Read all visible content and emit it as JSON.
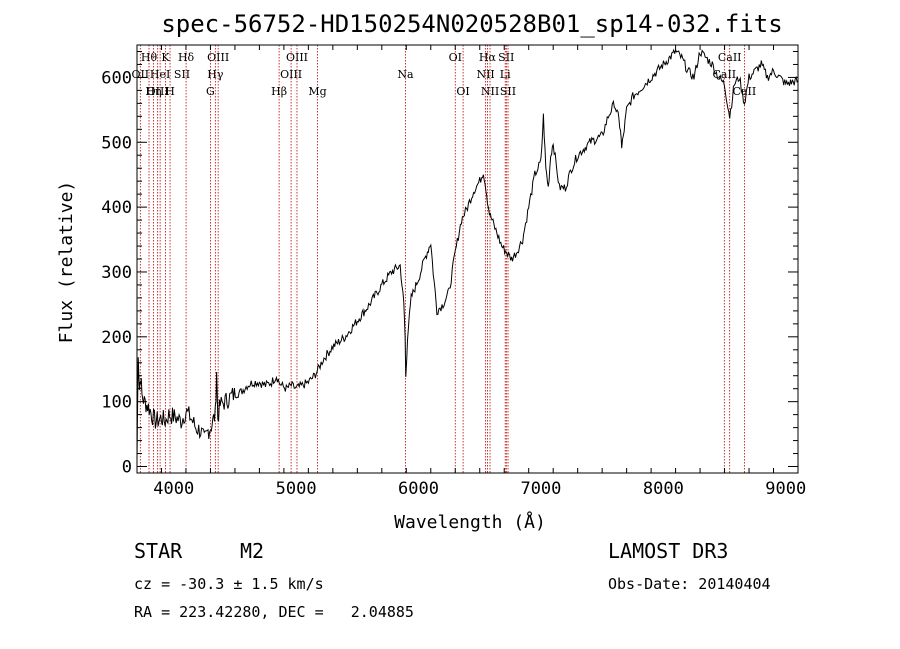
{
  "chart_data": {
    "type": "line",
    "title": "spec-56752-HD150254N020528B01_sp14-032.fits",
    "xlabel": "Wavelength (Å)",
    "ylabel": "Flux (relative)",
    "xlim": [
      3700,
      9100
    ],
    "ylim": [
      -10,
      650
    ],
    "x_ticks": [
      4000,
      5000,
      6000,
      7000,
      8000,
      9000
    ],
    "y_ticks": [
      0,
      100,
      200,
      300,
      400,
      500,
      600
    ],
    "grid": false,
    "series": [
      {
        "name": "spectrum",
        "x": [
          3700,
          3710,
          3720,
          3730,
          3740,
          3760,
          3780,
          3800,
          3820,
          3850,
          3880,
          3900,
          3930,
          3960,
          3990,
          4020,
          4060,
          4100,
          4140,
          4180,
          4220,
          4250,
          4280,
          4300,
          4320,
          4340,
          4350,
          4360,
          4380,
          4420,
          4480,
          4550,
          4600,
          4650,
          4700,
          4750,
          4800,
          4840,
          4861,
          4880,
          4920,
          4960,
          5000,
          5050,
          5100,
          5150,
          5180,
          5220,
          5300,
          5400,
          5500,
          5600,
          5700,
          5780,
          5850,
          5880,
          5890,
          5896,
          5910,
          5940,
          6000,
          6050,
          6080,
          6100,
          6120,
          6150,
          6200,
          6250,
          6300,
          6350,
          6400,
          6450,
          6500,
          6530,
          6550,
          6563,
          6580,
          6600,
          6640,
          6680,
          6720,
          6760,
          6800,
          6850,
          6900,
          6950,
          7000,
          7020,
          7040,
          7060,
          7080,
          7100,
          7150,
          7200,
          7250,
          7300,
          7400,
          7500,
          7550,
          7600,
          7630,
          7650,
          7660,
          7680,
          7700,
          7750,
          7800,
          7900,
          8000,
          8100,
          8150,
          8200,
          8250,
          8300,
          8350,
          8400,
          8450,
          8498,
          8542,
          8580,
          8620,
          8662,
          8700,
          8750,
          8800,
          8850,
          8900,
          8950,
          9000,
          9100
        ],
        "y": [
          10,
          180,
          120,
          140,
          110,
          100,
          95,
          90,
          80,
          70,
          72,
          75,
          70,
          80,
          78,
          75,
          70,
          85,
          75,
          60,
          55,
          40,
          55,
          60,
          70,
          80,
          150,
          75,
          95,
          100,
          110,
          115,
          125,
          130,
          130,
          125,
          130,
          140,
          130,
          125,
          120,
          125,
          120,
          125,
          130,
          140,
          150,
          165,
          185,
          200,
          225,
          250,
          280,
          300,
          310,
          250,
          200,
          140,
          200,
          260,
          290,
          320,
          335,
          345,
          300,
          240,
          250,
          270,
          330,
          380,
          400,
          425,
          440,
          455,
          430,
          410,
          390,
          380,
          360,
          340,
          330,
          320,
          330,
          350,
          400,
          450,
          470,
          540,
          460,
          430,
          480,
          500,
          430,
          430,
          460,
          480,
          500,
          510,
          540,
          560,
          540,
          520,
          490,
          520,
          550,
          570,
          580,
          600,
          620,
          640,
          630,
          610,
          600,
          640,
          630,
          620,
          600,
          590,
          540,
          590,
          600,
          560,
          600,
          610,
          620,
          600,
          610,
          600,
          590,
          595
        ]
      }
    ],
    "spectral_lines": {
      "wavelengths": [
        3727,
        3798,
        3835,
        3869,
        3889,
        3933,
        3970,
        4101,
        4300,
        4340,
        4363,
        4861,
        4959,
        5007,
        5175,
        5893,
        6300,
        6364,
        6548,
        6563,
        6584,
        6708,
        6717,
        6731,
        8498,
        8542,
        8662
      ],
      "top_labels": [
        {
          "text": "Hθ",
          "wl": 3798,
          "row": 1
        },
        {
          "text": "K",
          "wl": 3933,
          "row": 1
        },
        {
          "text": "Hδ",
          "wl": 4101,
          "row": 1
        },
        {
          "text": "OIII",
          "wl": 4363,
          "row": 1
        },
        {
          "text": "OIII",
          "wl": 5007,
          "row": 1
        },
        {
          "text": "OI",
          "wl": 6300,
          "row": 1
        },
        {
          "text": "Hα",
          "wl": 6563,
          "row": 1
        },
        {
          "text": "SII",
          "wl": 6717,
          "row": 1
        },
        {
          "text": "CaII",
          "wl": 8542,
          "row": 1
        },
        {
          "text": "OII",
          "wl": 3727,
          "row": 2
        },
        {
          "text": "HeI",
          "wl": 3889,
          "row": 2
        },
        {
          "text": "SII",
          "wl": 4068,
          "row": 2
        },
        {
          "text": "Hγ",
          "wl": 4340,
          "row": 2
        },
        {
          "text": "OIII",
          "wl": 4959,
          "row": 2
        },
        {
          "text": "Na",
          "wl": 5893,
          "row": 2
        },
        {
          "text": "NII",
          "wl": 6548,
          "row": 2
        },
        {
          "text": "Li",
          "wl": 6708,
          "row": 2
        },
        {
          "text": "CaII",
          "wl": 8498,
          "row": 2
        },
        {
          "text": "OIII",
          "wl": 3869,
          "row": 3
        },
        {
          "text": "Hη",
          "wl": 3835,
          "row": 3
        },
        {
          "text": "H",
          "wl": 3970,
          "row": 3
        },
        {
          "text": "G",
          "wl": 4300,
          "row": 3
        },
        {
          "text": "Hβ",
          "wl": 4861,
          "row": 3
        },
        {
          "text": "Mg",
          "wl": 5175,
          "row": 3
        },
        {
          "text": "OI",
          "wl": 6364,
          "row": 3
        },
        {
          "text": "NII",
          "wl": 6584,
          "row": 3
        },
        {
          "text": "SII",
          "wl": 6731,
          "row": 3
        },
        {
          "text": "CaII",
          "wl": 8662,
          "row": 3
        }
      ]
    },
    "colors": {
      "line": "#000000",
      "marker_lines": "#c00000"
    }
  },
  "info": {
    "class": "STAR",
    "subclass": "M2",
    "survey": "LAMOST DR3",
    "cz": "cz = -30.3 ± 1.5 km/s",
    "obs_date": "Obs-Date: 20140404",
    "radec": "RA = 223.42280, DEC =   2.04885"
  }
}
